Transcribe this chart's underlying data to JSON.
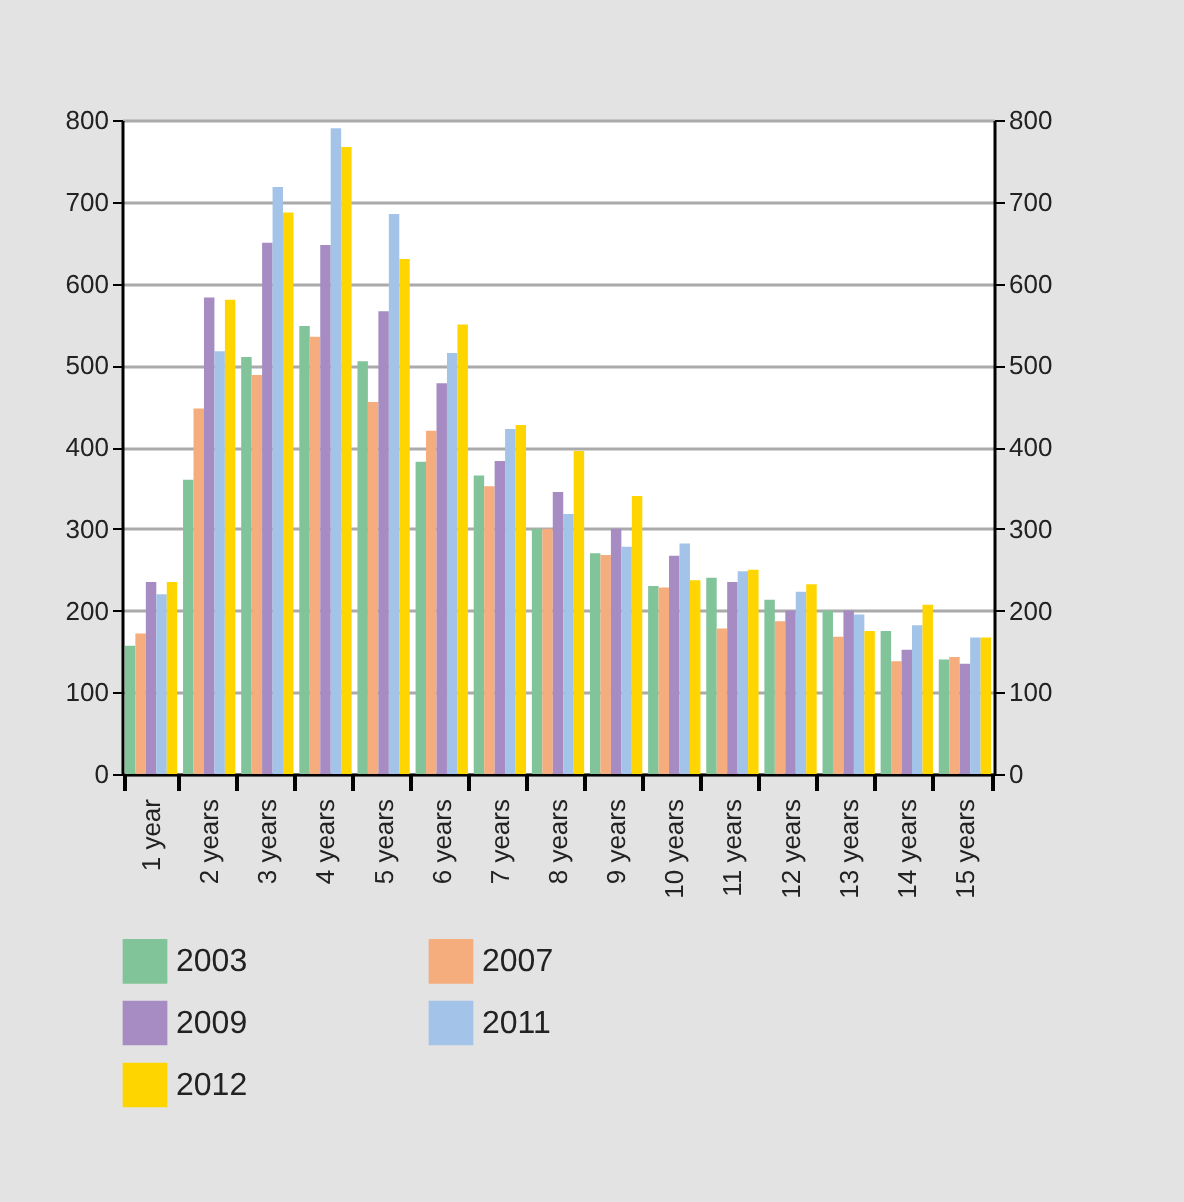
{
  "chart_data": {
    "type": "bar",
    "categories": [
      "1 year",
      "2 years",
      "3 years",
      "4 years",
      "5 years",
      "6 years",
      "7 years",
      "8 years",
      "9 years",
      "10 years",
      "11 years",
      "12 years",
      "13 years",
      "14 years",
      "15 years"
    ],
    "series": [
      {
        "name": "2003",
        "color": "#82c49a",
        "values": [
          157,
          360,
          510,
          548,
          505,
          382,
          365,
          300,
          270,
          230,
          240,
          213,
          200,
          175,
          140
        ]
      },
      {
        "name": "2007",
        "color": "#f5ad7e",
        "values": [
          172,
          447,
          488,
          535,
          455,
          420,
          352,
          300,
          268,
          228,
          178,
          187,
          168,
          138,
          143
        ]
      },
      {
        "name": "2009",
        "color": "#a68cc2",
        "values": [
          235,
          583,
          650,
          647,
          566,
          478,
          383,
          345,
          300,
          267,
          235,
          200,
          200,
          152,
          135
        ]
      },
      {
        "name": "2011",
        "color": "#a3c4e8",
        "values": [
          220,
          517,
          718,
          790,
          685,
          515,
          422,
          318,
          278,
          282,
          248,
          223,
          195,
          182,
          167
        ]
      },
      {
        "name": "2012",
        "color": "#ffd500",
        "values": [
          235,
          580,
          687,
          767,
          630,
          550,
          427,
          395,
          340,
          237,
          250,
          232,
          175,
          207,
          167
        ]
      }
    ],
    "ylim": [
      0,
      800
    ],
    "yticks": [
      0,
      100,
      200,
      300,
      400,
      500,
      600,
      700,
      800
    ],
    "y2lim": [
      0,
      800
    ],
    "y2ticks": [
      0,
      100,
      200,
      300,
      400,
      500,
      600,
      700,
      800
    ],
    "grid": "y",
    "legend": "bottom"
  }
}
